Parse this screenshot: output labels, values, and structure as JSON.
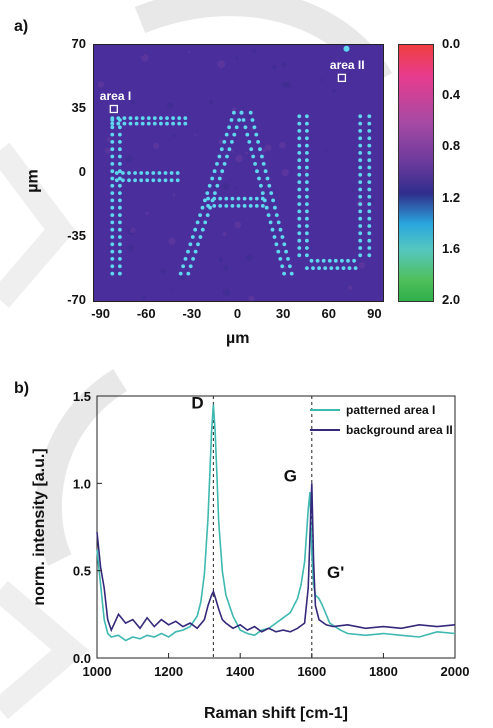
{
  "panels": {
    "a_label": "a)",
    "b_label": "b)"
  },
  "chart_data": [
    {
      "type": "heatmap",
      "xlabel": "µm",
      "ylabel": "µm",
      "xlim": [
        -95,
        95
      ],
      "ylim": [
        -70,
        70
      ],
      "x_ticks": [
        "-90",
        "-60",
        "-30",
        "0",
        "30",
        "60",
        "90"
      ],
      "y_ticks": [
        "70",
        "35",
        "0",
        "-35",
        "-70"
      ],
      "annotations": [
        {
          "text": "area I",
          "x": -82,
          "y": 35
        },
        {
          "text": "area II",
          "x": 68,
          "y": 52
        }
      ],
      "colorbar": {
        "ticks": [
          "0.0",
          "0.4",
          "0.8",
          "1.2",
          "1.6",
          "2.0"
        ],
        "range": [
          0.0,
          2.0
        ],
        "colors": [
          "#ef3f3f",
          "#e83c8e",
          "#a74aa4",
          "#6a3a9c",
          "#2f2d8c",
          "#2aa7de",
          "#55c7bf",
          "#4fbf5a",
          "#2fb04a"
        ]
      },
      "background_color": "#4a2f9c",
      "feature_color": "#5fd8ef",
      "pattern_text": "FAU"
    },
    {
      "type": "line",
      "xlabel": "Raman shift [cm-1]",
      "ylabel": "norm. intensity [a.u.]",
      "xlim": [
        1000,
        2000
      ],
      "ylim": [
        0.0,
        1.5
      ],
      "x_ticks": [
        "1000",
        "1200",
        "1400",
        "1600",
        "1800",
        "2000"
      ],
      "y_ticks": [
        "0.0",
        "0.5",
        "1.0",
        "1.5"
      ],
      "legend_position": "top-right",
      "series": [
        {
          "name": "patterned area I",
          "color": "#3fb8b0",
          "x": [
            1000,
            1010,
            1020,
            1030,
            1040,
            1060,
            1080,
            1100,
            1120,
            1140,
            1160,
            1180,
            1200,
            1220,
            1240,
            1260,
            1280,
            1290,
            1300,
            1310,
            1315,
            1320,
            1325,
            1330,
            1335,
            1340,
            1350,
            1360,
            1380,
            1400,
            1420,
            1440,
            1460,
            1480,
            1500,
            1520,
            1540,
            1560,
            1570,
            1580,
            1590,
            1595,
            1600,
            1605,
            1610,
            1620,
            1630,
            1650,
            1680,
            1700,
            1750,
            1800,
            1850,
            1900,
            1950,
            2000
          ],
          "y": [
            0.62,
            0.42,
            0.22,
            0.14,
            0.12,
            0.13,
            0.1,
            0.12,
            0.11,
            0.13,
            0.12,
            0.14,
            0.12,
            0.15,
            0.16,
            0.18,
            0.24,
            0.32,
            0.48,
            0.8,
            1.05,
            1.3,
            1.45,
            1.3,
            1.05,
            0.78,
            0.5,
            0.36,
            0.24,
            0.16,
            0.14,
            0.13,
            0.16,
            0.17,
            0.2,
            0.23,
            0.26,
            0.34,
            0.42,
            0.55,
            0.85,
            0.95,
            0.6,
            0.42,
            0.36,
            0.34,
            0.3,
            0.2,
            0.16,
            0.14,
            0.13,
            0.14,
            0.13,
            0.12,
            0.15,
            0.14
          ]
        },
        {
          "name": "background area II",
          "color": "#34297a",
          "x": [
            1000,
            1010,
            1020,
            1030,
            1040,
            1060,
            1080,
            1100,
            1120,
            1140,
            1160,
            1180,
            1200,
            1220,
            1240,
            1260,
            1280,
            1300,
            1310,
            1320,
            1325,
            1330,
            1340,
            1350,
            1360,
            1380,
            1400,
            1420,
            1440,
            1460,
            1480,
            1500,
            1520,
            1540,
            1560,
            1580,
            1590,
            1595,
            1600,
            1605,
            1610,
            1620,
            1640,
            1660,
            1700,
            1750,
            1800,
            1850,
            1900,
            1950,
            2000
          ],
          "y": [
            0.72,
            0.52,
            0.4,
            0.22,
            0.16,
            0.25,
            0.2,
            0.22,
            0.17,
            0.23,
            0.18,
            0.22,
            0.19,
            0.21,
            0.18,
            0.2,
            0.17,
            0.22,
            0.3,
            0.36,
            0.38,
            0.35,
            0.28,
            0.22,
            0.2,
            0.17,
            0.19,
            0.16,
            0.18,
            0.15,
            0.17,
            0.15,
            0.16,
            0.15,
            0.17,
            0.2,
            0.4,
            0.7,
            1.0,
            0.55,
            0.3,
            0.22,
            0.19,
            0.18,
            0.19,
            0.17,
            0.18,
            0.17,
            0.19,
            0.18,
            0.19
          ]
        }
      ],
      "annotations": [
        {
          "text": "D",
          "x": 1325,
          "y": 1.45
        },
        {
          "text": "G",
          "x": 1600,
          "y": 1.0
        },
        {
          "text": "G'",
          "x": 1620,
          "y": 0.55
        }
      ],
      "reference_lines_x": [
        1325,
        1600
      ]
    }
  ]
}
